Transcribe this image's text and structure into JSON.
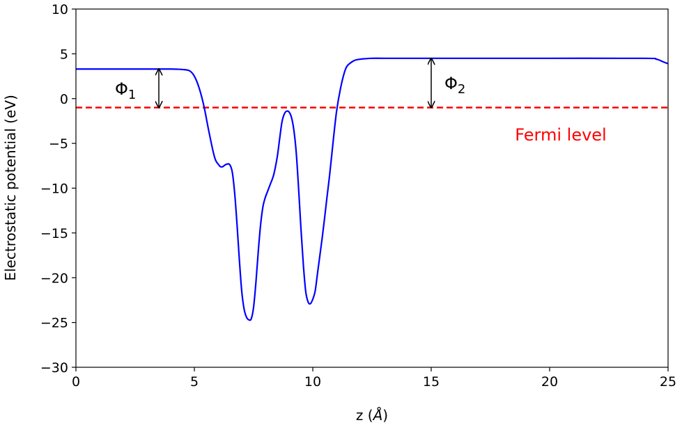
{
  "chart_data": {
    "type": "line",
    "xlabel_prefix": "z (",
    "xlabel_unit": "Å",
    "xlabel_suffix": ")",
    "ylabel": "Electrostatic potential (eV)",
    "xlim": [
      0,
      25
    ],
    "ylim": [
      -30,
      10
    ],
    "xticks": [
      0,
      5,
      10,
      15,
      20,
      25
    ],
    "yticks": [
      10,
      5,
      0,
      -5,
      -10,
      -15,
      -20,
      -25,
      -30
    ],
    "grid": false,
    "series": [
      {
        "color": "#0000ff",
        "x": [
          0,
          1,
          2,
          3,
          4,
          4.5,
          4.8,
          5.0,
          5.2,
          5.4,
          5.6,
          5.8,
          5.9,
          6.0,
          6.1,
          6.2,
          6.3,
          6.4,
          6.5,
          6.6,
          6.7,
          6.8,
          6.9,
          7.0,
          7.1,
          7.2,
          7.3,
          7.4,
          7.5,
          7.6,
          7.7,
          7.8,
          7.9,
          8.0,
          8.1,
          8.2,
          8.35,
          8.5,
          8.6,
          8.7,
          8.8,
          8.9,
          9.0,
          9.1,
          9.2,
          9.3,
          9.4,
          9.5,
          9.6,
          9.7,
          9.8,
          9.9,
          10.0,
          10.1,
          10.2,
          10.3,
          10.4,
          10.5,
          10.6,
          10.7,
          10.8,
          11.0,
          11.2,
          11.4,
          11.6,
          11.8,
          12.0,
          12.2,
          12.5,
          13.0,
          14.0,
          16.0,
          20.0,
          24.0,
          24.5,
          24.8,
          25.0
        ],
        "y": [
          3.3,
          3.3,
          3.3,
          3.3,
          3.3,
          3.25,
          3.1,
          2.5,
          1.2,
          -0.8,
          -3.5,
          -6.0,
          -6.9,
          -7.3,
          -7.6,
          -7.6,
          -7.4,
          -7.3,
          -7.4,
          -8.2,
          -10.5,
          -14.0,
          -18.0,
          -21.5,
          -23.5,
          -24.4,
          -24.7,
          -24.6,
          -23.3,
          -20.5,
          -17.0,
          -14.0,
          -12.0,
          -11.0,
          -10.3,
          -9.6,
          -8.5,
          -6.5,
          -4.5,
          -2.6,
          -1.7,
          -1.4,
          -1.5,
          -2.1,
          -3.5,
          -6.0,
          -10.0,
          -14.5,
          -18.5,
          -21.5,
          -22.7,
          -22.9,
          -22.4,
          -21.5,
          -19.5,
          -17.5,
          -15.5,
          -13.3,
          -11.0,
          -8.8,
          -6.3,
          -1.5,
          1.5,
          3.4,
          4.0,
          4.3,
          4.4,
          4.45,
          4.5,
          4.5,
          4.5,
          4.5,
          4.5,
          4.5,
          4.4,
          4.1,
          3.9
        ]
      }
    ],
    "fermi_level": {
      "y": -1.0,
      "color": "#ff0000",
      "style": "dashed",
      "label": "Fermi level"
    },
    "annotations": [
      {
        "symbol": "Φ",
        "subscript": "1",
        "arrow_x": 3.5,
        "arrow_y_top": 3.3,
        "arrow_y_bottom": -1.0
      },
      {
        "symbol": "Φ",
        "subscript": "2",
        "arrow_x": 15.0,
        "arrow_y_top": 4.5,
        "arrow_y_bottom": -1.0
      }
    ]
  }
}
